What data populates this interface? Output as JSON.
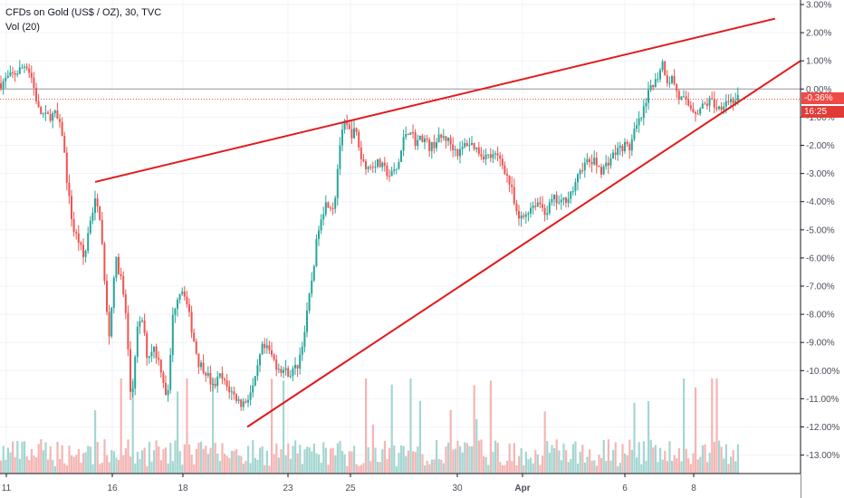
{
  "header": {
    "symbol_title": "CFDs on Gold (US$ / OZ), 30, TVC",
    "indicator_label": "Vol (20)"
  },
  "price_tags": {
    "last_change": "-0.36%",
    "countdown": "16:25"
  },
  "colors": {
    "up": "#26a69a",
    "down": "#ef5350",
    "volume_up": "#a5d6d1",
    "volume_down": "#f4b5b3",
    "trendline": "#e3191b",
    "baseline": "#9598a1",
    "current_price_line": "#ef5350"
  },
  "chart_data": {
    "type": "candlestick",
    "y_unit": "percent change",
    "ylim": [
      -13.6,
      3.2
    ],
    "y_ticks": [
      "3.00%",
      "2.00%",
      "1.00%",
      "0.00%",
      "-1.00%",
      "-2.00%",
      "-3.00%",
      "-4.00%",
      "-5.00%",
      "-6.00%",
      "-7.00%",
      "-8.00%",
      "-9.00%",
      "-10.00%",
      "-11.00%",
      "-12.00%",
      "-13.00%"
    ],
    "x_ticks": [
      "11",
      "16",
      "18",
      "23",
      "25",
      "30",
      "Apr",
      "6",
      "8"
    ],
    "last_value": -0.36,
    "price_path": [
      [
        0,
        0.2
      ],
      [
        8,
        0.4
      ],
      [
        18,
        0.6
      ],
      [
        28,
        0.9
      ],
      [
        34,
        0.4
      ],
      [
        42,
        -0.8
      ],
      [
        50,
        -1.0
      ],
      [
        60,
        -0.9
      ],
      [
        68,
        -1.6
      ],
      [
        74,
        -3.6
      ],
      [
        80,
        -5.0
      ],
      [
        86,
        -5.4
      ],
      [
        92,
        -6.1
      ],
      [
        98,
        -4.7
      ],
      [
        104,
        -4.0
      ],
      [
        110,
        -4.6
      ],
      [
        116,
        -7.7
      ],
      [
        120,
        -8.8
      ],
      [
        126,
        -6.0
      ],
      [
        132,
        -6.6
      ],
      [
        138,
        -8.0
      ],
      [
        144,
        -11.3
      ],
      [
        150,
        -8.6
      ],
      [
        156,
        -8.2
      ],
      [
        162,
        -9.6
      ],
      [
        168,
        -9.1
      ],
      [
        176,
        -9.8
      ],
      [
        184,
        -11.1
      ],
      [
        190,
        -8.0
      ],
      [
        196,
        -7.2
      ],
      [
        202,
        -7.1
      ],
      [
        210,
        -8.4
      ],
      [
        218,
        -9.7
      ],
      [
        226,
        -10.0
      ],
      [
        234,
        -10.6
      ],
      [
        242,
        -10.2
      ],
      [
        250,
        -10.6
      ],
      [
        258,
        -10.9
      ],
      [
        266,
        -11.2
      ],
      [
        272,
        -11.0
      ],
      [
        280,
        -10.5
      ],
      [
        288,
        -9.2
      ],
      [
        296,
        -9.3
      ],
      [
        304,
        -9.8
      ],
      [
        312,
        -10.0
      ],
      [
        320,
        -10.1
      ],
      [
        328,
        -9.8
      ],
      [
        336,
        -8.5
      ],
      [
        344,
        -6.6
      ],
      [
        352,
        -4.6
      ],
      [
        360,
        -4.0
      ],
      [
        368,
        -4.2
      ],
      [
        374,
        -2.0
      ],
      [
        380,
        -1.2
      ],
      [
        386,
        -1.6
      ],
      [
        392,
        -1.5
      ],
      [
        398,
        -2.5
      ],
      [
        406,
        -2.8
      ],
      [
        414,
        -2.6
      ],
      [
        422,
        -2.8
      ],
      [
        430,
        -3.1
      ],
      [
        438,
        -2.8
      ],
      [
        446,
        -1.6
      ],
      [
        452,
        -1.4
      ],
      [
        458,
        -1.9
      ],
      [
        466,
        -1.7
      ],
      [
        474,
        -2.1
      ],
      [
        482,
        -1.8
      ],
      [
        490,
        -1.7
      ],
      [
        498,
        -2.0
      ],
      [
        506,
        -2.3
      ],
      [
        514,
        -1.9
      ],
      [
        522,
        -2.0
      ],
      [
        530,
        -2.3
      ],
      [
        538,
        -2.4
      ],
      [
        546,
        -2.4
      ],
      [
        552,
        -2.5
      ],
      [
        558,
        -3.0
      ],
      [
        564,
        -3.6
      ],
      [
        570,
        -4.6
      ],
      [
        576,
        -4.6
      ],
      [
        582,
        -4.3
      ],
      [
        588,
        -4.1
      ],
      [
        594,
        -4.0
      ],
      [
        602,
        -4.4
      ],
      [
        610,
        -3.9
      ],
      [
        618,
        -4.1
      ],
      [
        626,
        -3.8
      ],
      [
        634,
        -3.5
      ],
      [
        640,
        -2.8
      ],
      [
        648,
        -2.6
      ],
      [
        656,
        -2.6
      ],
      [
        664,
        -2.9
      ],
      [
        672,
        -2.5
      ],
      [
        680,
        -2.2
      ],
      [
        688,
        -2.0
      ],
      [
        694,
        -2.1
      ],
      [
        700,
        -1.5
      ],
      [
        706,
        -1.1
      ],
      [
        712,
        -0.6
      ],
      [
        718,
        0.2
      ],
      [
        724,
        0.3
      ],
      [
        730,
        1.0
      ],
      [
        736,
        0.3
      ],
      [
        742,
        0.4
      ],
      [
        748,
        -0.3
      ],
      [
        754,
        -0.4
      ],
      [
        760,
        -0.6
      ],
      [
        768,
        -0.8
      ],
      [
        776,
        -0.6
      ],
      [
        784,
        -0.4
      ],
      [
        792,
        -0.7
      ],
      [
        800,
        -0.4
      ],
      [
        808,
        -0.4
      ],
      [
        816,
        -0.36
      ]
    ],
    "trendlines": [
      {
        "name": "upper",
        "start": [
          105,
          -3.3
        ],
        "end": [
          856,
          2.5
        ]
      },
      {
        "name": "lower",
        "start": [
          273,
          -12.0
        ],
        "end": [
          884,
          1.0
        ]
      }
    ],
    "horizontal_lines": [
      {
        "name": "zero-baseline",
        "value": 0.0
      },
      {
        "name": "current-price",
        "value": -0.36
      }
    ]
  }
}
